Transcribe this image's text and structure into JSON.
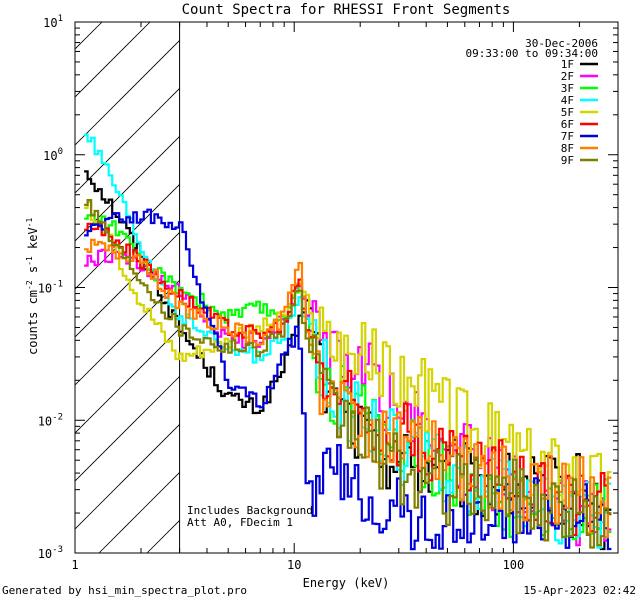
{
  "chart_data": {
    "type": "line",
    "title": "Count Spectra for RHESSI Front Segments",
    "xlabel": "Energy (keV)",
    "ylabel_main": "counts cm",
    "ylabel_sup1": "-2",
    "ylabel_mid": " s",
    "ylabel_sup2": "-1",
    "ylabel_end": " keV",
    "ylabel_sup3": "-1",
    "x_scale": "log",
    "y_scale": "log",
    "xlim": [
      1,
      300
    ],
    "ylim": [
      0.001,
      10
    ],
    "x_ticks": [
      {
        "v": 1,
        "label": "1"
      },
      {
        "v": 10,
        "label": "10"
      },
      {
        "v": 100,
        "label": "100"
      }
    ],
    "y_ticks": [
      {
        "v": 10,
        "base": "10",
        "exp": "1"
      },
      {
        "v": 1,
        "base": "10",
        "exp": "0"
      },
      {
        "v": 0.1,
        "base": "10",
        "exp": "-1"
      },
      {
        "v": 0.01,
        "base": "10",
        "exp": "-2"
      },
      {
        "v": 0.001,
        "base": "10",
        "exp": "-3"
      }
    ],
    "date": "30-Dec-2006",
    "time_range": "09:33:00 to 09:34:00",
    "annotation_line1": "Includes Background",
    "annotation_line2": "Att A0, FDecim 1",
    "hatch_region_kev": [
      1,
      3
    ],
    "series": [
      {
        "name": "1F",
        "color": "#000000",
        "x": [
          1.1,
          1.5,
          2,
          3,
          5,
          7,
          9,
          10.5,
          11.5,
          14,
          20,
          30,
          50,
          80,
          120,
          200,
          280
        ],
        "values": [
          0.8,
          0.4,
          0.18,
          0.05,
          0.015,
          0.012,
          0.025,
          0.05,
          0.09,
          0.015,
          0.008,
          0.005,
          0.004,
          0.003,
          0.003,
          0.003,
          0.0015
        ]
      },
      {
        "name": "2F",
        "color": "#ff00ff",
        "x": [
          1.1,
          1.5,
          2,
          3,
          5,
          7,
          9,
          10.5,
          11.5,
          14,
          20,
          30,
          50,
          80,
          120,
          200,
          280
        ],
        "values": [
          0.15,
          0.18,
          0.14,
          0.09,
          0.04,
          0.04,
          0.06,
          0.1,
          0.06,
          0.03,
          0.025,
          0.012,
          0.006,
          0.004,
          0.003,
          0.002,
          0.0015
        ]
      },
      {
        "name": "3F",
        "color": "#00ff00",
        "x": [
          1.1,
          1.5,
          2,
          3,
          5,
          7,
          9,
          10.5,
          11.5,
          14,
          20,
          30,
          50,
          80,
          120,
          200,
          280
        ],
        "values": [
          0.35,
          0.3,
          0.15,
          0.1,
          0.06,
          0.07,
          0.06,
          0.11,
          0.05,
          0.02,
          0.012,
          0.006,
          0.004,
          0.003,
          0.002,
          0.0022,
          0.002
        ]
      },
      {
        "name": "4F",
        "color": "#00ffff",
        "x": [
          1.1,
          1.5,
          2,
          3,
          5,
          7,
          9,
          10.5,
          11.5,
          14,
          20,
          30,
          50,
          80,
          120,
          200,
          280
        ],
        "values": [
          1.6,
          0.6,
          0.2,
          0.06,
          0.035,
          0.03,
          0.04,
          0.08,
          0.06,
          0.02,
          0.01,
          0.006,
          0.004,
          0.003,
          0.0025,
          0.002,
          0.0018
        ]
      },
      {
        "name": "5F",
        "color": "#d4d400",
        "x": [
          1.1,
          1.5,
          2,
          3,
          5,
          7,
          9,
          10.5,
          11.5,
          14,
          20,
          30,
          50,
          80,
          120,
          200,
          280
        ],
        "values": [
          0.45,
          0.2,
          0.08,
          0.03,
          0.04,
          0.05,
          0.06,
          0.1,
          0.08,
          0.04,
          0.03,
          0.02,
          0.012,
          0.007,
          0.005,
          0.004,
          0.003
        ]
      },
      {
        "name": "6F",
        "color": "#ff0000",
        "x": [
          1.1,
          1.5,
          2,
          3,
          5,
          7,
          9,
          10.5,
          11.5,
          14,
          20,
          30,
          50,
          80,
          120,
          200,
          280
        ],
        "values": [
          0.3,
          0.25,
          0.15,
          0.09,
          0.05,
          0.045,
          0.05,
          0.12,
          0.05,
          0.02,
          0.012,
          0.008,
          0.005,
          0.004,
          0.003,
          0.0025,
          0.002
        ]
      },
      {
        "name": "7F",
        "color": "#0000dd",
        "x": [
          1.1,
          1.5,
          2,
          3,
          5,
          7,
          9,
          10.5,
          11.5,
          14,
          20,
          30,
          50,
          80,
          120,
          200,
          280
        ],
        "values": [
          0.27,
          0.33,
          0.35,
          0.3,
          0.02,
          0.013,
          0.03,
          0.05,
          0.003,
          0.004,
          0.003,
          0.002,
          0.0015,
          0.002,
          0.002,
          0.002,
          0.0015
        ]
      },
      {
        "name": "8F",
        "color": "#ff8000",
        "x": [
          1.1,
          1.5,
          2,
          3,
          5,
          7,
          9,
          10.5,
          11.5,
          14,
          20,
          30,
          50,
          80,
          120,
          200,
          280
        ],
        "values": [
          0.22,
          0.18,
          0.17,
          0.07,
          0.05,
          0.04,
          0.06,
          0.17,
          0.05,
          0.015,
          0.01,
          0.007,
          0.005,
          0.004,
          0.003,
          0.003,
          0.002
        ]
      },
      {
        "name": "9F",
        "color": "#808000",
        "x": [
          1.1,
          1.5,
          2,
          3,
          5,
          7,
          9,
          10.5,
          11.5,
          14,
          20,
          30,
          50,
          80,
          120,
          200,
          280
        ],
        "values": [
          0.5,
          0.22,
          0.12,
          0.05,
          0.035,
          0.035,
          0.05,
          0.1,
          0.04,
          0.012,
          0.008,
          0.004,
          0.003,
          0.003,
          0.0025,
          0.002,
          0.0015
        ]
      }
    ]
  },
  "footer": {
    "generated_by": "Generated by hsi_min_spectra_plot.pro",
    "timestamp": "15-Apr-2023 02:42"
  }
}
